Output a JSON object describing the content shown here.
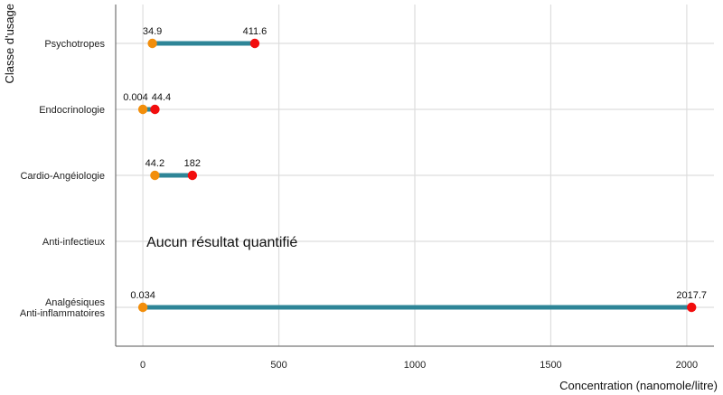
{
  "chart_data": {
    "type": "dumbbell",
    "xlabel": "Concentration (nanomole/litre)",
    "ylabel": "Classe d'usage",
    "xlim": [
      -100,
      2100
    ],
    "x_ticks": [
      0,
      500,
      1000,
      1500,
      2000
    ],
    "x_tick_labels": [
      "0",
      "500",
      "1000",
      "1500",
      "2000"
    ],
    "grid": true,
    "categories": [
      {
        "label": [
          "Psychotropes"
        ],
        "min": 34.9,
        "max": 411.6,
        "min_label": "34.9",
        "max_label": "411.6"
      },
      {
        "label": [
          "Endocrinologie"
        ],
        "min": 0.004,
        "max": 44.4,
        "min_label": "0.004",
        "max_label": "44.4"
      },
      {
        "label": [
          "Cardio-Angéiologie"
        ],
        "min": 44.2,
        "max": 182,
        "min_label": "44.2",
        "max_label": "182"
      },
      {
        "label": [
          "Anti-infectieux"
        ],
        "min": null,
        "max": null,
        "annotation": "Aucun résultat quantifié"
      },
      {
        "label": [
          "Analgésiques",
          "Anti-inflammatoires"
        ],
        "min": 0.034,
        "max": 2017.7,
        "min_label": "0.034",
        "max_label": "2017.7"
      }
    ],
    "colors": {
      "min_point": "#F28E0B",
      "max_point": "#F20D0D",
      "segment": "#2E8597",
      "grid": "#DDDDDD",
      "axis": "#555555"
    }
  }
}
